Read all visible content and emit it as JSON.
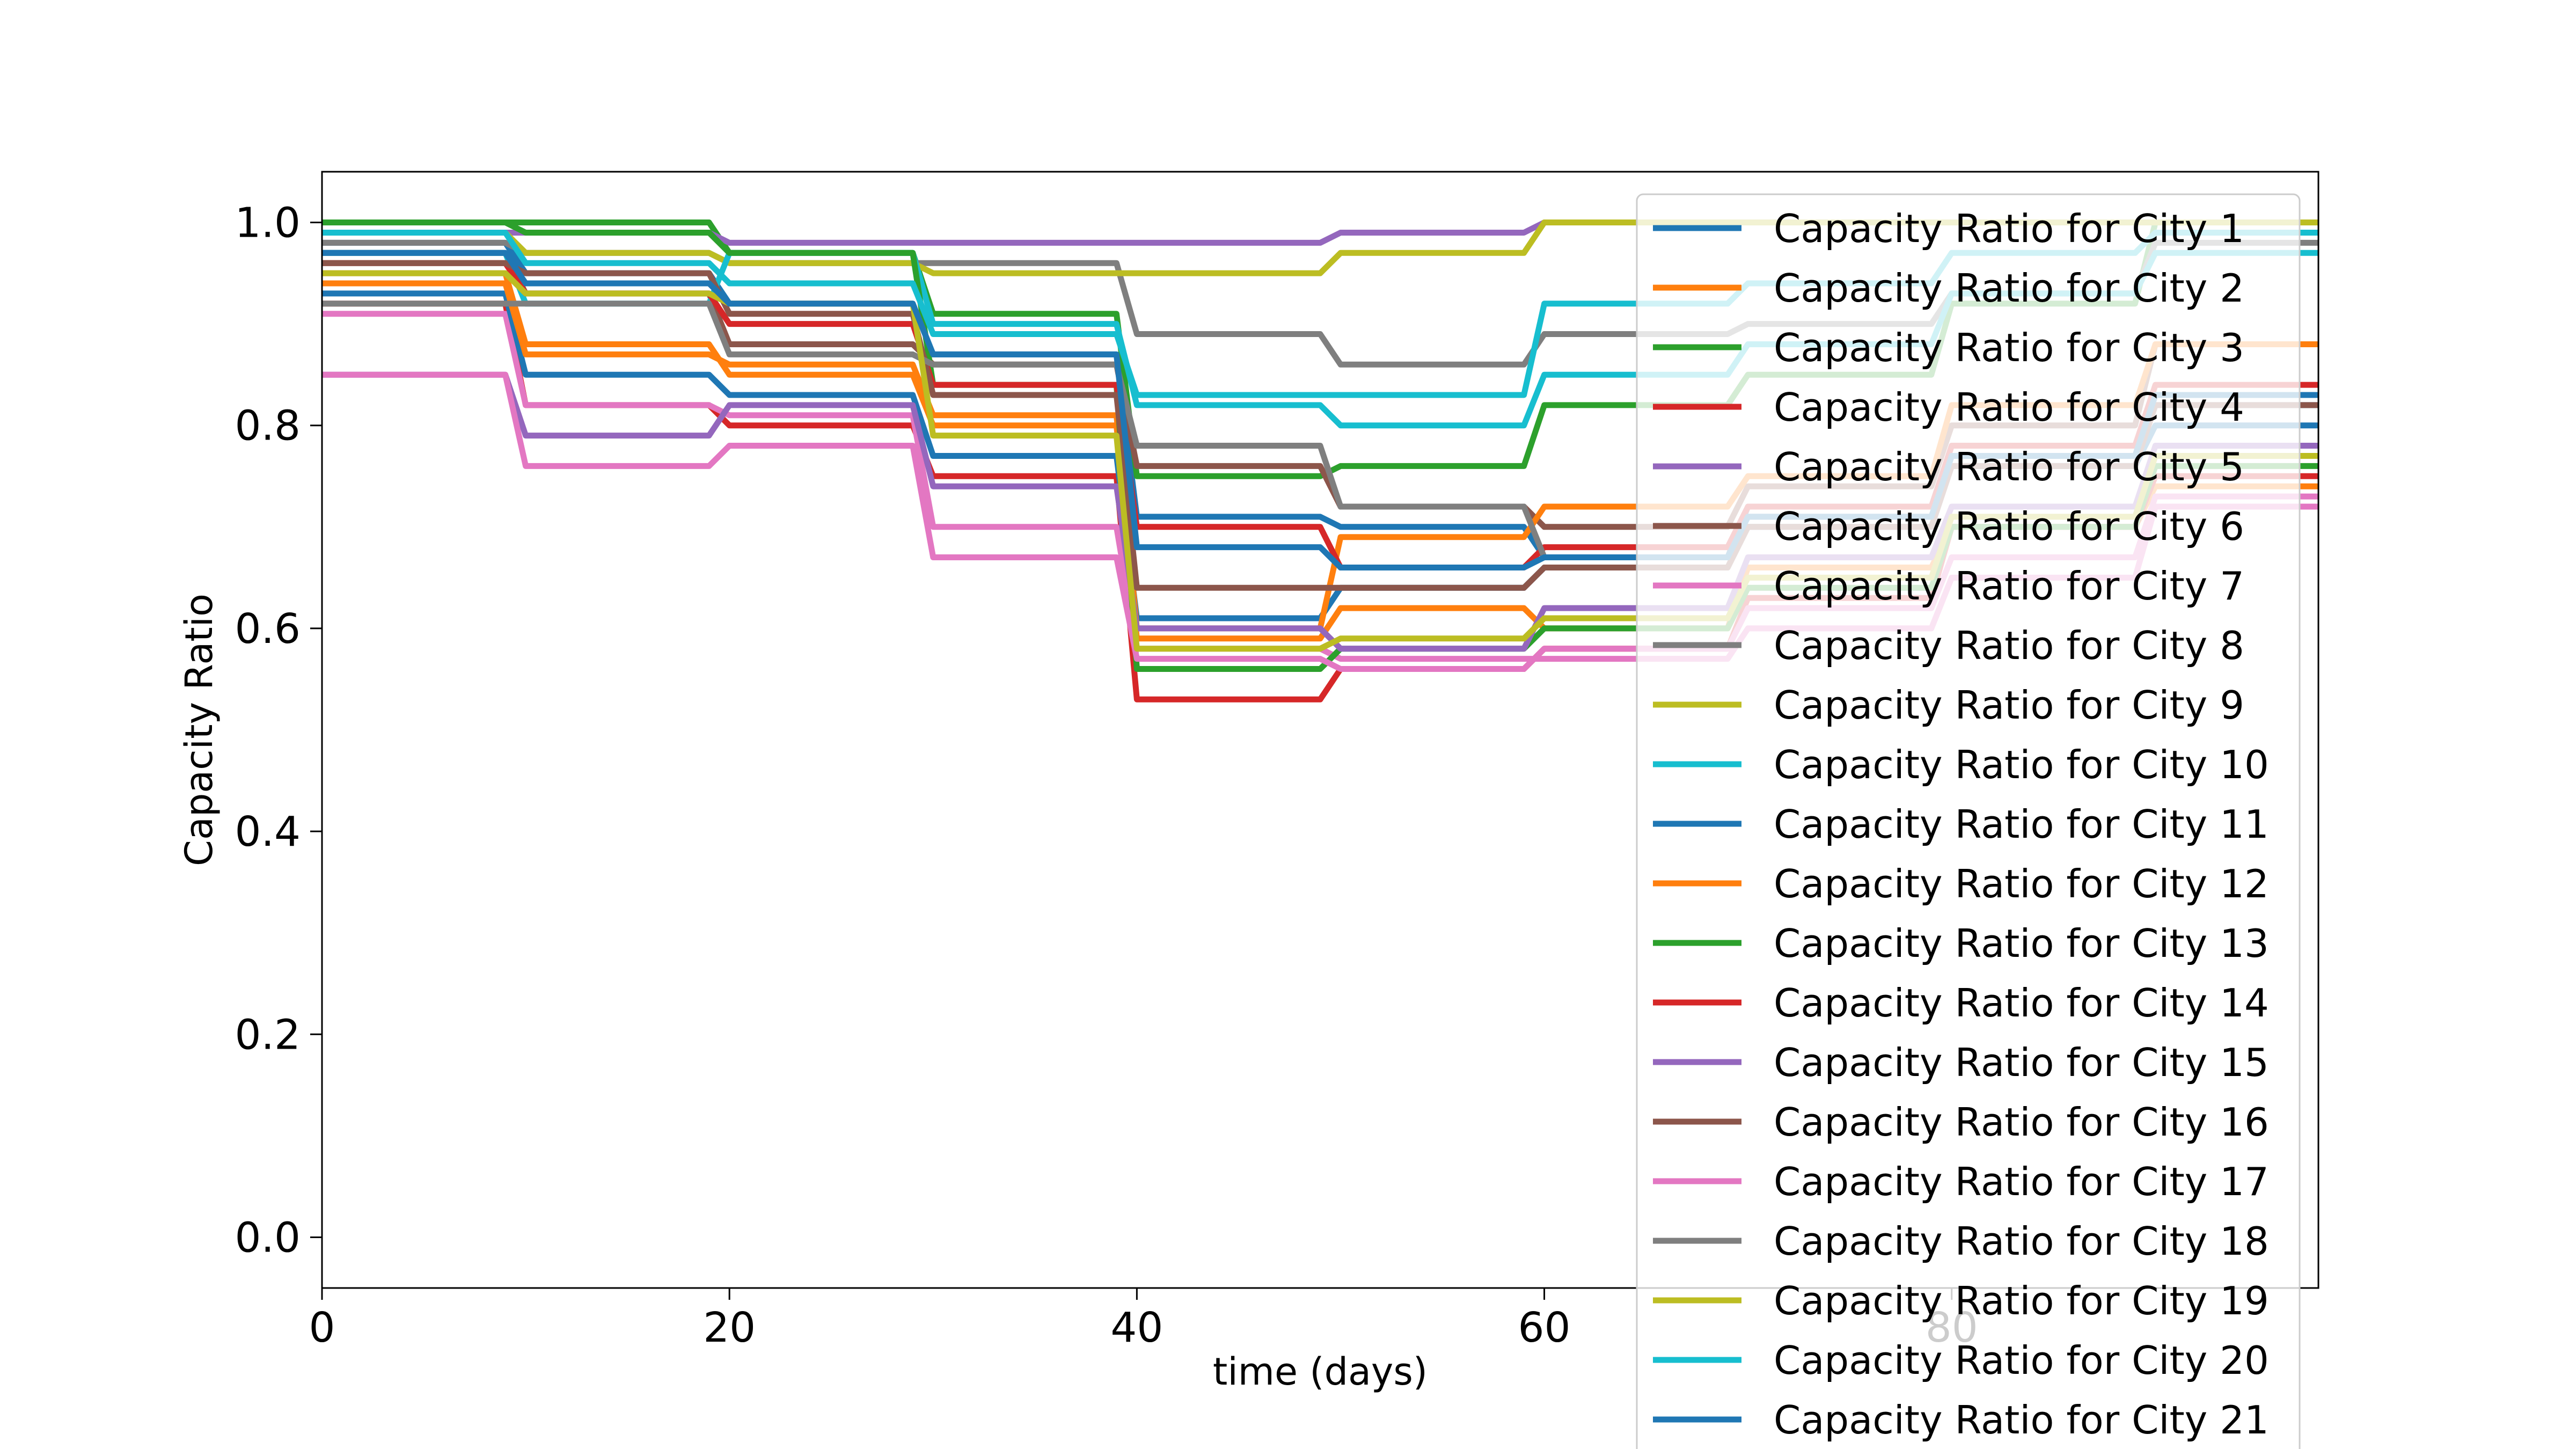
{
  "chart_data": {
    "type": "line",
    "title": "",
    "xlabel": "time (days)",
    "ylabel": "Capacity Ratio",
    "xlim": [
      0,
      98
    ],
    "ylim": [
      -0.05,
      1.05
    ],
    "x_ticks": [
      0,
      20,
      40,
      60,
      80
    ],
    "y_ticks": [
      0.0,
      0.2,
      0.4,
      0.6,
      0.8,
      1.0
    ],
    "x_tick_labels": [
      "0",
      "20",
      "40",
      "60",
      "80"
    ],
    "y_tick_labels": [
      "0.0",
      "0.2",
      "0.4",
      "0.6",
      "0.8",
      "1.0"
    ],
    "grid": false,
    "legend_position": "right, overflowing bottom",
    "step_days": [
      0,
      10,
      20,
      30,
      40,
      50,
      60,
      70,
      80,
      90
    ],
    "series": [
      {
        "name": "Capacity Ratio for City 1",
        "color": "#1f77b4",
        "values": [
          0.98,
          0.95,
          0.92,
          0.87,
          0.71,
          0.7,
          0.67,
          0.72,
          0.78,
          0.82
        ]
      },
      {
        "name": "Capacity Ratio for City 2",
        "color": "#ff7f0e",
        "values": [
          0.95,
          0.88,
          0.85,
          0.8,
          0.59,
          0.62,
          0.6,
          0.66,
          0.7,
          0.74
        ]
      },
      {
        "name": "Capacity Ratio for City 3",
        "color": "#2ca02c",
        "values": [
          1.0,
          1.0,
          0.97,
          0.91,
          0.75,
          0.76,
          0.82,
          0.85,
          0.92,
          1.0
        ]
      },
      {
        "name": "Capacity Ratio for City 4",
        "color": "#d62728",
        "values": [
          0.92,
          0.82,
          0.8,
          0.75,
          0.53,
          0.56,
          0.58,
          0.63,
          0.7,
          0.75
        ]
      },
      {
        "name": "Capacity Ratio for City 5",
        "color": "#9467bd",
        "values": [
          0.99,
          0.99,
          0.98,
          0.98,
          0.98,
          0.99,
          1.0,
          1.0,
          1.0,
          1.0
        ]
      },
      {
        "name": "Capacity Ratio for City 6",
        "color": "#8c564b",
        "values": [
          0.97,
          0.93,
          0.88,
          0.86,
          0.76,
          0.72,
          0.7,
          0.74,
          0.8,
          0.88
        ]
      },
      {
        "name": "Capacity Ratio for City 7",
        "color": "#e377c2",
        "values": [
          0.91,
          0.82,
          0.81,
          0.7,
          0.58,
          0.57,
          0.57,
          0.6,
          0.65,
          0.72
        ]
      },
      {
        "name": "Capacity Ratio for City 8",
        "color": "#7f7f7f",
        "values": [
          0.98,
          0.97,
          0.96,
          0.96,
          0.89,
          0.86,
          0.89,
          0.9,
          0.93,
          0.98
        ]
      },
      {
        "name": "Capacity Ratio for City 9",
        "color": "#bcbd22",
        "values": [
          0.99,
          0.97,
          0.96,
          0.95,
          0.95,
          0.97,
          1.0,
          1.0,
          1.0,
          1.0
        ]
      },
      {
        "name": "Capacity Ratio for City 10",
        "color": "#17becf",
        "values": [
          0.97,
          0.92,
          0.97,
          0.9,
          0.82,
          0.8,
          0.85,
          0.88,
          0.93,
          0.97
        ]
      },
      {
        "name": "Capacity Ratio for City 11",
        "color": "#1f77b4",
        "values": [
          0.93,
          0.85,
          0.83,
          0.77,
          0.61,
          0.64,
          0.66,
          0.7,
          0.76,
          0.8
        ]
      },
      {
        "name": "Capacity Ratio for City 12",
        "color": "#ff7f0e",
        "values": [
          0.94,
          0.87,
          0.86,
          0.81,
          0.6,
          0.69,
          0.72,
          0.75,
          0.82,
          0.88
        ]
      },
      {
        "name": "Capacity Ratio for City 13",
        "color": "#2ca02c",
        "values": [
          1.0,
          0.99,
          0.97,
          0.84,
          0.56,
          0.58,
          0.6,
          0.64,
          0.7,
          0.76
        ]
      },
      {
        "name": "Capacity Ratio for City 14",
        "color": "#d62728",
        "values": [
          0.96,
          0.93,
          0.9,
          0.84,
          0.7,
          0.66,
          0.68,
          0.72,
          0.78,
          0.84
        ]
      },
      {
        "name": "Capacity Ratio for City 15",
        "color": "#9467bd",
        "values": [
          0.85,
          0.79,
          0.82,
          0.74,
          0.6,
          0.58,
          0.62,
          0.67,
          0.72,
          0.78
        ]
      },
      {
        "name": "Capacity Ratio for City 16",
        "color": "#8c564b",
        "values": [
          0.96,
          0.95,
          0.91,
          0.83,
          0.64,
          0.64,
          0.66,
          0.7,
          0.76,
          0.82
        ]
      },
      {
        "name": "Capacity Ratio for City 17",
        "color": "#e377c2",
        "values": [
          0.85,
          0.76,
          0.78,
          0.67,
          0.57,
          0.56,
          0.58,
          0.62,
          0.67,
          0.73
        ]
      },
      {
        "name": "Capacity Ratio for City 18",
        "color": "#7f7f7f",
        "values": [
          0.92,
          0.92,
          0.87,
          0.86,
          0.78,
          0.72,
          0.67,
          0.71,
          0.77,
          0.83
        ]
      },
      {
        "name": "Capacity Ratio for City 19",
        "color": "#bcbd22",
        "values": [
          0.95,
          0.93,
          0.92,
          0.79,
          0.58,
          0.59,
          0.61,
          0.65,
          0.71,
          0.77
        ]
      },
      {
        "name": "Capacity Ratio for City 20",
        "color": "#17becf",
        "values": [
          0.99,
          0.96,
          0.94,
          0.89,
          0.83,
          0.83,
          0.92,
          0.94,
          0.97,
          0.99
        ]
      },
      {
        "name": "Capacity Ratio for City 21",
        "color": "#1f77b4",
        "values": [
          0.97,
          0.94,
          0.92,
          0.87,
          0.68,
          0.66,
          0.67,
          0.71,
          0.77,
          0.83
        ]
      }
    ]
  }
}
